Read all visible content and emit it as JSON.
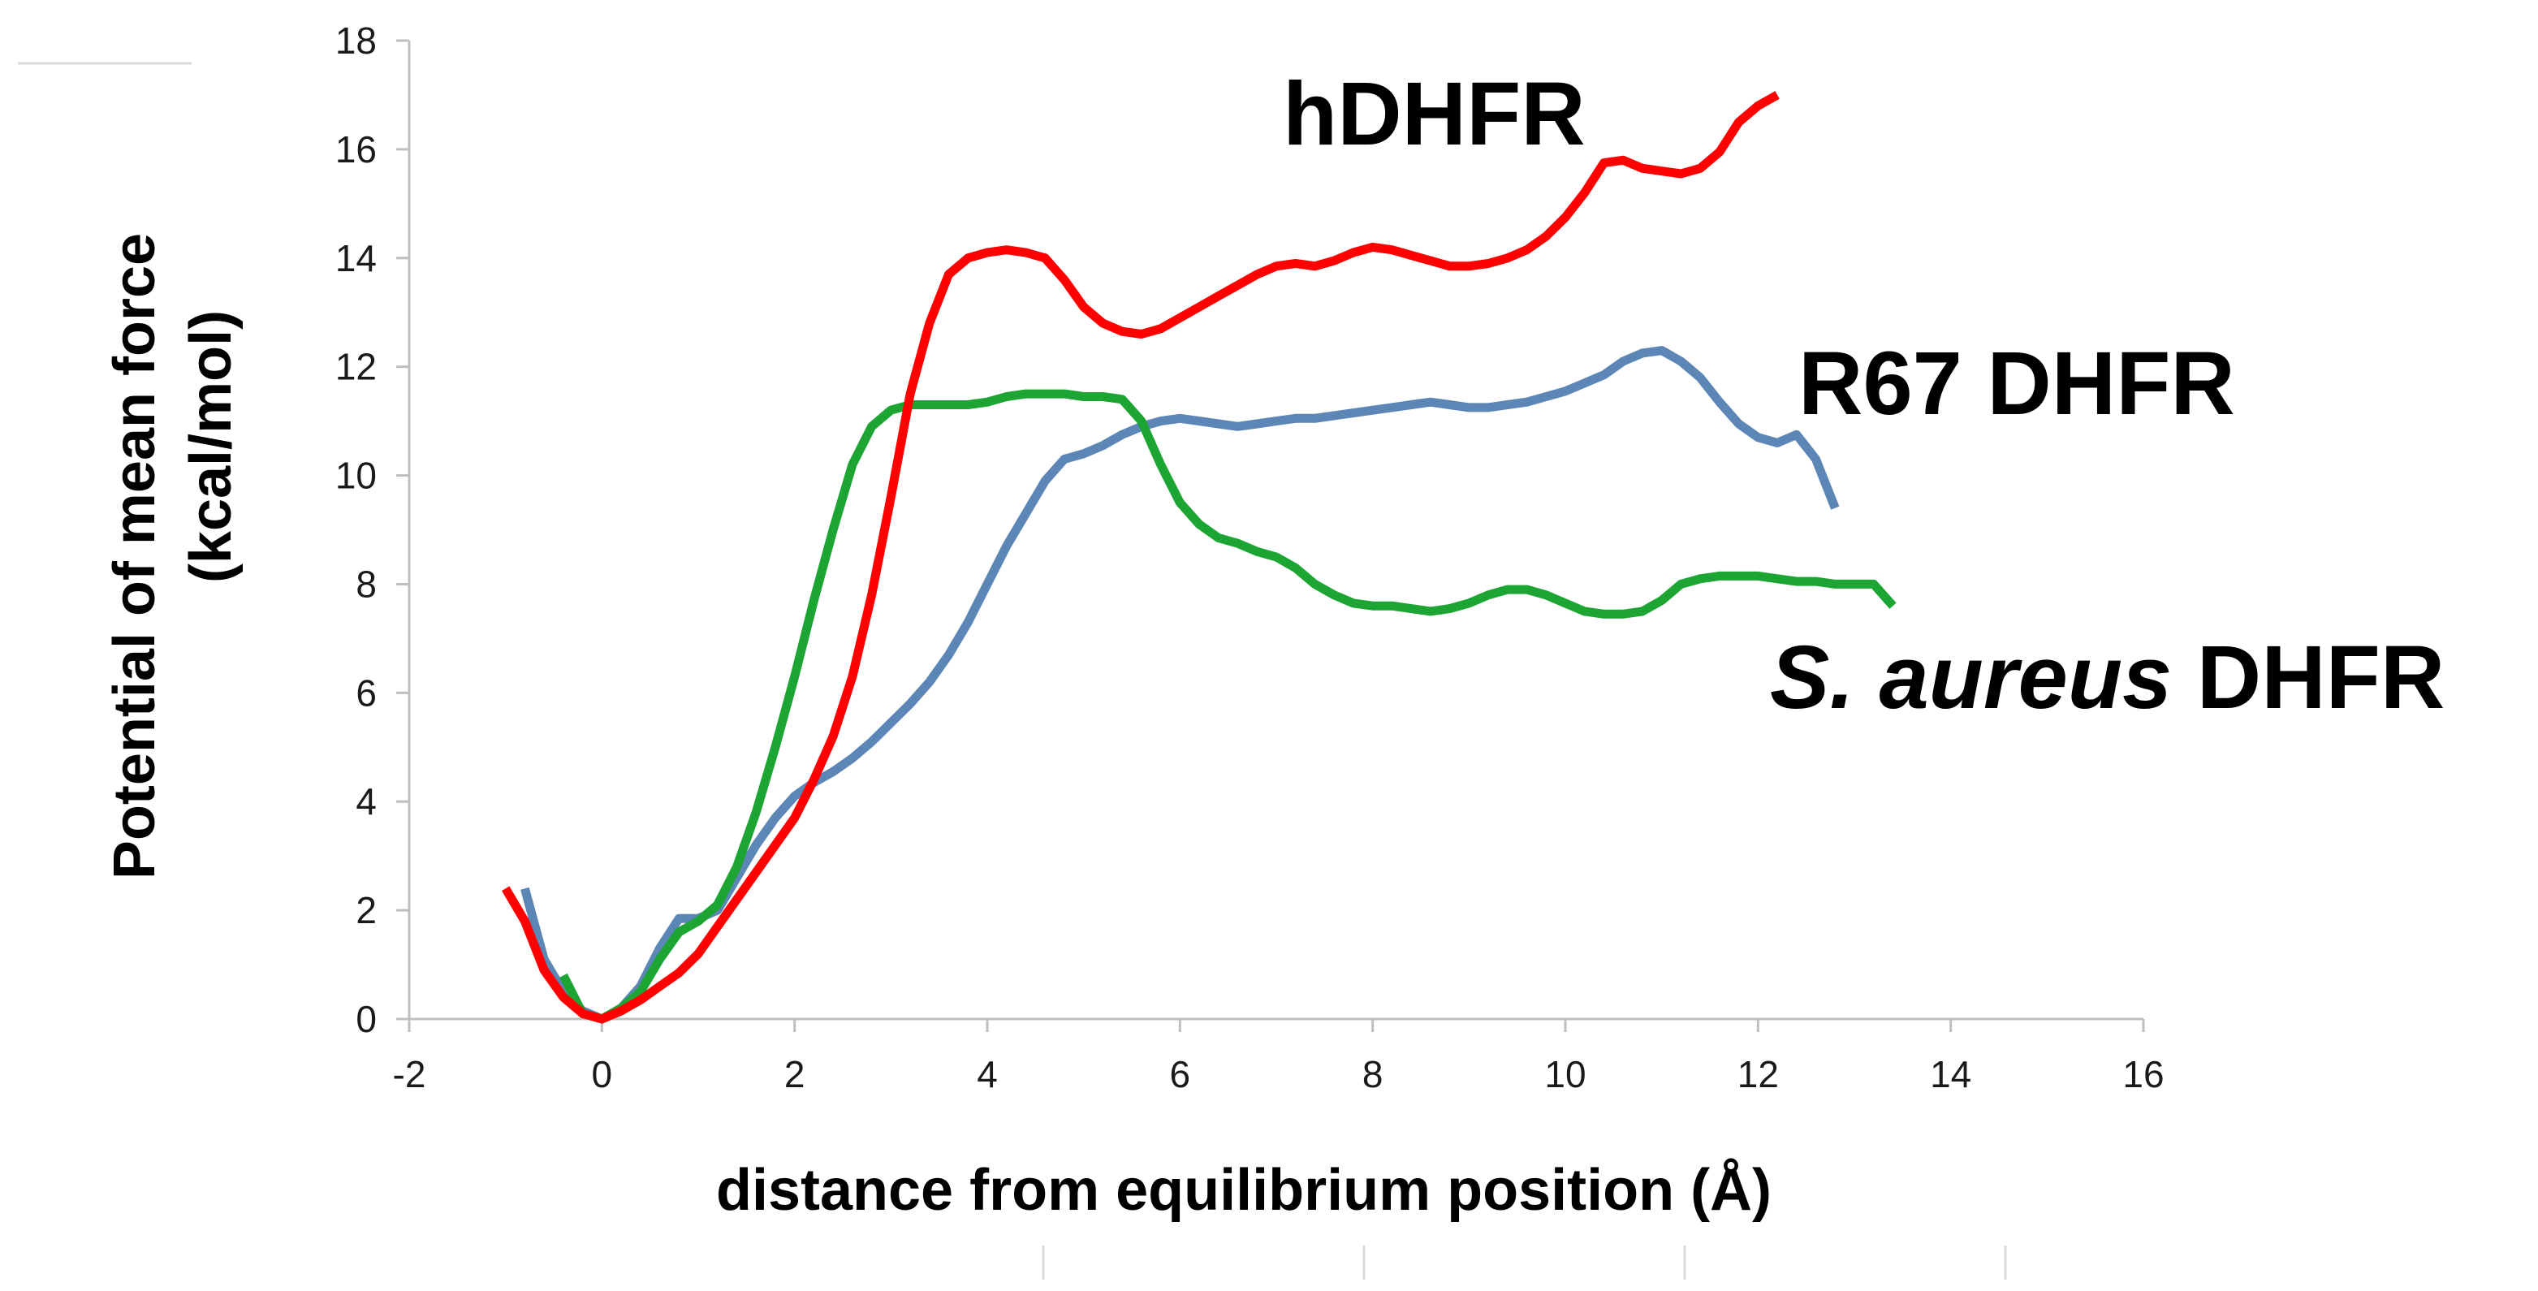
{
  "chart_data": {
    "type": "line",
    "title": "",
    "xlabel": "distance from equilibrium position (Å)",
    "ylabel_line1": "Potential of mean force",
    "ylabel_line2": "(kcal/mol)",
    "xlim": [
      -2,
      16
    ],
    "ylim": [
      0,
      18
    ],
    "x_ticks": [
      -2,
      0,
      2,
      4,
      6,
      8,
      10,
      12,
      14,
      16
    ],
    "y_ticks": [
      0,
      2,
      4,
      6,
      8,
      10,
      12,
      14,
      16,
      18
    ],
    "grid": false,
    "legend": "none",
    "series": [
      {
        "name": "hDHFR",
        "color": "#ff0000",
        "x": [
          -1.0,
          -0.8,
          -0.6,
          -0.4,
          -0.2,
          0.0,
          0.2,
          0.4,
          0.6,
          0.8,
          1.0,
          1.2,
          1.4,
          1.6,
          1.8,
          2.0,
          2.2,
          2.4,
          2.6,
          2.8,
          3.0,
          3.2,
          3.4,
          3.6,
          3.8,
          4.0,
          4.2,
          4.4,
          4.6,
          4.8,
          5.0,
          5.2,
          5.4,
          5.6,
          5.8,
          6.0,
          6.2,
          6.4,
          6.6,
          6.8,
          7.0,
          7.2,
          7.4,
          7.6,
          7.8,
          8.0,
          8.2,
          8.4,
          8.6,
          8.8,
          9.0,
          9.2,
          9.4,
          9.6,
          9.8,
          10.0,
          10.2,
          10.4,
          10.6,
          10.8,
          11.0,
          11.2,
          11.4,
          11.6,
          11.8,
          12.0,
          12.2
        ],
        "y": [
          2.4,
          1.8,
          0.9,
          0.4,
          0.1,
          0.0,
          0.15,
          0.35,
          0.6,
          0.85,
          1.2,
          1.7,
          2.2,
          2.7,
          3.2,
          3.7,
          4.4,
          5.2,
          6.3,
          7.8,
          9.6,
          11.5,
          12.8,
          13.7,
          14.0,
          14.1,
          14.15,
          14.1,
          14.0,
          13.6,
          13.1,
          12.8,
          12.65,
          12.6,
          12.7,
          12.9,
          13.1,
          13.3,
          13.5,
          13.7,
          13.85,
          13.9,
          13.85,
          13.95,
          14.1,
          14.2,
          14.15,
          14.05,
          13.95,
          13.85,
          13.85,
          13.9,
          14.0,
          14.15,
          14.4,
          14.75,
          15.2,
          15.75,
          15.8,
          15.65,
          15.6,
          15.55,
          15.65,
          15.95,
          16.5,
          16.8,
          17.0
        ]
      },
      {
        "name": "R67 DHFR",
        "color": "#5b86b5",
        "x": [
          -0.8,
          -0.6,
          -0.4,
          -0.2,
          0.0,
          0.2,
          0.4,
          0.6,
          0.8,
          1.0,
          1.2,
          1.4,
          1.6,
          1.8,
          2.0,
          2.2,
          2.4,
          2.6,
          2.8,
          3.0,
          3.2,
          3.4,
          3.6,
          3.8,
          4.0,
          4.2,
          4.4,
          4.6,
          4.8,
          5.0,
          5.2,
          5.4,
          5.6,
          5.8,
          6.0,
          6.2,
          6.4,
          6.6,
          6.8,
          7.0,
          7.2,
          7.4,
          7.6,
          7.8,
          8.0,
          8.2,
          8.4,
          8.6,
          8.8,
          9.0,
          9.2,
          9.4,
          9.6,
          9.8,
          10.0,
          10.2,
          10.4,
          10.6,
          10.8,
          11.0,
          11.2,
          11.4,
          11.6,
          11.8,
          12.0,
          12.2,
          12.4,
          12.6,
          12.8
        ],
        "y": [
          2.4,
          1.1,
          0.5,
          0.15,
          0.0,
          0.2,
          0.6,
          1.3,
          1.85,
          1.85,
          2.0,
          2.6,
          3.2,
          3.7,
          4.1,
          4.35,
          4.55,
          4.8,
          5.1,
          5.45,
          5.8,
          6.2,
          6.7,
          7.3,
          8.0,
          8.7,
          9.3,
          9.9,
          10.3,
          10.4,
          10.55,
          10.75,
          10.9,
          11.0,
          11.05,
          11.0,
          10.95,
          10.9,
          10.95,
          11.0,
          11.05,
          11.05,
          11.1,
          11.15,
          11.2,
          11.25,
          11.3,
          11.35,
          11.3,
          11.25,
          11.25,
          11.3,
          11.35,
          11.45,
          11.55,
          11.7,
          11.85,
          12.1,
          12.25,
          12.3,
          12.1,
          11.8,
          11.35,
          10.95,
          10.7,
          10.6,
          10.75,
          10.3,
          9.4
        ]
      },
      {
        "name": "S. aureus DHFR",
        "color": "#1ca533",
        "x": [
          -0.4,
          -0.2,
          0.0,
          0.2,
          0.4,
          0.6,
          0.8,
          1.0,
          1.2,
          1.4,
          1.6,
          1.8,
          2.0,
          2.2,
          2.4,
          2.6,
          2.8,
          3.0,
          3.2,
          3.4,
          3.6,
          3.8,
          4.0,
          4.2,
          4.4,
          4.6,
          4.8,
          5.0,
          5.2,
          5.4,
          5.6,
          5.8,
          6.0,
          6.2,
          6.4,
          6.6,
          6.8,
          7.0,
          7.2,
          7.4,
          7.6,
          7.8,
          8.0,
          8.2,
          8.4,
          8.6,
          8.8,
          9.0,
          9.2,
          9.4,
          9.6,
          9.8,
          10.0,
          10.2,
          10.4,
          10.6,
          10.8,
          11.0,
          11.2,
          11.4,
          11.6,
          11.8,
          12.0,
          12.2,
          12.4,
          12.6,
          12.8,
          13.0,
          13.2,
          13.4
        ],
        "y": [
          0.8,
          0.1,
          0.0,
          0.2,
          0.5,
          1.1,
          1.6,
          1.8,
          2.1,
          2.8,
          3.8,
          5.0,
          6.3,
          7.7,
          9.0,
          10.2,
          10.9,
          11.2,
          11.3,
          11.3,
          11.3,
          11.3,
          11.35,
          11.45,
          11.5,
          11.5,
          11.5,
          11.45,
          11.45,
          11.4,
          11.0,
          10.2,
          9.5,
          9.1,
          8.85,
          8.75,
          8.6,
          8.5,
          8.3,
          8.0,
          7.8,
          7.65,
          7.6,
          7.6,
          7.55,
          7.5,
          7.55,
          7.65,
          7.8,
          7.9,
          7.9,
          7.8,
          7.65,
          7.5,
          7.45,
          7.45,
          7.5,
          7.7,
          8.0,
          8.1,
          8.15,
          8.15,
          8.15,
          8.1,
          8.05,
          8.05,
          8.0,
          8.0,
          8.0,
          7.6
        ]
      }
    ],
    "annotations": [
      {
        "series": "hDHFR",
        "label": "hDHFR",
        "label_parts": [
          {
            "text": "hDHFR",
            "italic": false
          }
        ]
      },
      {
        "series": "R67 DHFR",
        "label": "R67 DHFR",
        "label_parts": [
          {
            "text": "R67 DHFR",
            "italic": false
          }
        ]
      },
      {
        "series": "S. aureus DHFR",
        "label": "S. aureus DHFR",
        "label_parts": [
          {
            "text": "S. aureus",
            "italic": true
          },
          {
            "text": " DHFR",
            "italic": false
          }
        ]
      }
    ]
  }
}
